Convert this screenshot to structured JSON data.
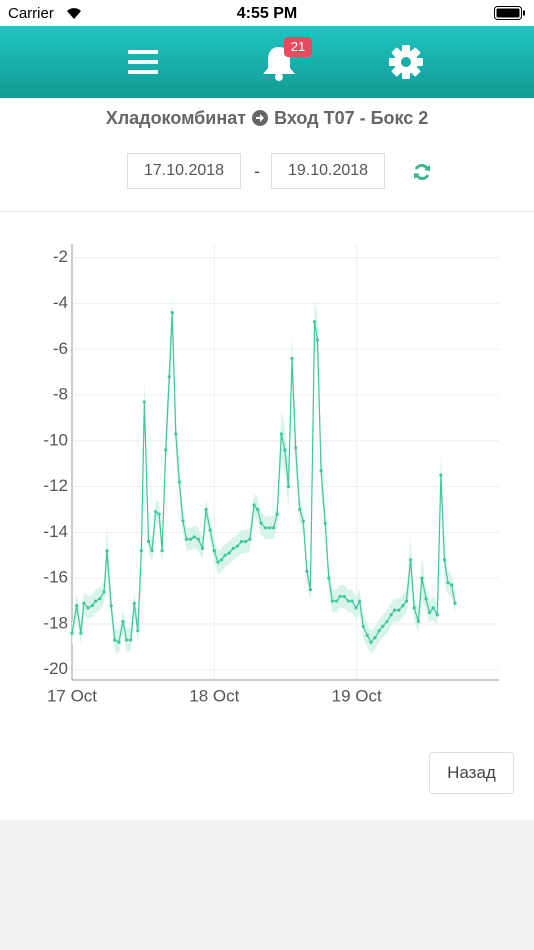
{
  "status_bar": {
    "carrier": "Carrier",
    "time": "4:55 PM"
  },
  "header": {
    "badge": "21"
  },
  "breadcrumb": {
    "from": "Хладокомбинат",
    "to": "Вход Т07 - Бокс 2"
  },
  "date_range": {
    "start": "17.10.2018",
    "separator": "-",
    "end": "19.10.2018"
  },
  "button": {
    "label": "Назад"
  },
  "chart_data": {
    "type": "line",
    "x": [
      0,
      0.8,
      1.5,
      2,
      2.7,
      3.4,
      4,
      4.7,
      5.4,
      5.9,
      6.6,
      7.2,
      7.9,
      8.6,
      9.2,
      9.9,
      10.5,
      11.1,
      11.7,
      12.2,
      12.9,
      13.5,
      14.1,
      14.7,
      15.2,
      15.8,
      16.4,
      16.9,
      17.5,
      18.1,
      18.7,
      19.3,
      20,
      20.6,
      21.3,
      22,
      22.6,
      23.3,
      24,
      24.6,
      25.2,
      25.8,
      26.5,
      27.2,
      27.9,
      28.6,
      29.3,
      30,
      30.7,
      31.3,
      31.9,
      32.6,
      33.3,
      34,
      34.6,
      35.3,
      35.9,
      36.5,
      37.1,
      37.7,
      38.4,
      39,
      39.6,
      40.2,
      40.9,
      41.4,
      42,
      42.7,
      43.3,
      43.9,
      44.6,
      45.2,
      45.9,
      46.6,
      47.2,
      47.9,
      48.5,
      49.1,
      49.8,
      50.4,
      51.1,
      51.8,
      52.4,
      53.1,
      53.8,
      54.4,
      55.1,
      55.8,
      56.4,
      57.1,
      57.7,
      58.4,
      59,
      59.7,
      60.3,
      60.9,
      61.6,
      62.2,
      62.8,
      63.4,
      64,
      64.6
    ],
    "series": [
      {
        "color": "#3fc59f",
        "values": [
          -18.4,
          -17.2,
          -18.4,
          -17.1,
          -17.3,
          -17.2,
          -17.0,
          -16.9,
          -16.6,
          -14.8,
          -17.2,
          -18.7,
          -18.8,
          -17.9,
          -18.7,
          -18.7,
          -17.1,
          -18.3,
          -14.8,
          -8.3,
          -14.4,
          -14.8,
          -13.1,
          -13.2,
          -14.8,
          -10.4,
          -7.2,
          -4.4,
          -9.7,
          -11.8,
          -13.5,
          -14.3,
          -14.3,
          -14.2,
          -14.3,
          -14.7,
          -13.0,
          -13.9,
          -14.8,
          -15.3,
          -15.2,
          -15.0,
          -14.9,
          -14.7,
          -14.6,
          -14.4,
          -14.4,
          -14.3,
          -12.8,
          -13.0,
          -13.6,
          -13.8,
          -13.8,
          -13.8,
          -13.2,
          -9.7,
          -10.4,
          -12.0,
          -6.4,
          -10.3,
          -13.0,
          -13.5,
          -15.7,
          -16.5,
          -4.8,
          -5.6,
          -11.3,
          -13.6,
          -16.0,
          -17.0,
          -17.0,
          -16.8,
          -16.8,
          -17.0,
          -17.0,
          -17.3,
          -17.0,
          -18.1,
          -18.5,
          -18.8,
          -18.6,
          -18.3,
          -18.1,
          -17.9,
          -17.6,
          -17.4,
          -17.4,
          -17.2,
          -17.0,
          -15.2,
          -17.3,
          -17.9,
          -16.0,
          -16.9,
          -17.5,
          -17.3,
          -17.6,
          -11.5,
          -15.2,
          -16.2,
          -16.3,
          -17.1
        ]
      }
    ],
    "band": {
      "color": "#d8f4ea",
      "upper": [
        -17.9,
        -16.7,
        -17.9,
        -16.6,
        -16.8,
        -16.7,
        -16.5,
        -16.4,
        -16.1,
        -13.8,
        -16.7,
        -18.2,
        -18.3,
        -17.4,
        -18.2,
        -18.2,
        -16.6,
        -17.8,
        -13.8,
        -7.3,
        -13.9,
        -14.3,
        -12.6,
        -12.7,
        -14.3,
        -9.4,
        -6.2,
        -3.4,
        -8.7,
        -11.3,
        -13.0,
        -13.8,
        -13.8,
        -13.7,
        -13.8,
        -14.2,
        -12.5,
        -13.4,
        -14.3,
        -14.8,
        -14.7,
        -14.5,
        -14.4,
        -14.2,
        -14.1,
        -13.9,
        -13.9,
        -13.8,
        -12.3,
        -12.5,
        -13.1,
        -13.3,
        -13.3,
        -13.3,
        -12.7,
        -8.7,
        -9.4,
        -11.0,
        -5.4,
        -9.3,
        -12.5,
        -13.0,
        -15.2,
        -16.0,
        -3.8,
        -4.6,
        -10.3,
        -13.1,
        -15.5,
        -16.5,
        -16.5,
        -16.3,
        -16.3,
        -16.5,
        -16.5,
        -16.8,
        -16.5,
        -17.6,
        -18.0,
        -18.3,
        -18.1,
        -17.8,
        -17.6,
        -17.4,
        -17.1,
        -16.9,
        -16.9,
        -16.7,
        -16.5,
        -14.2,
        -16.8,
        -17.4,
        -15.0,
        -16.4,
        -17.0,
        -16.8,
        -17.1,
        -10.5,
        -14.2,
        -15.7,
        -15.8,
        -16.6
      ],
      "lower": [
        -18.9,
        -17.7,
        -18.9,
        -17.6,
        -17.8,
        -17.7,
        -17.5,
        -17.4,
        -17.1,
        -15.8,
        -17.7,
        -19.2,
        -19.3,
        -18.4,
        -19.2,
        -19.2,
        -17.6,
        -18.8,
        -15.8,
        -9.3,
        -14.9,
        -15.3,
        -13.6,
        -13.7,
        -15.3,
        -11.4,
        -8.2,
        -5.4,
        -10.7,
        -12.3,
        -14.0,
        -14.8,
        -14.8,
        -14.7,
        -14.8,
        -15.2,
        -13.5,
        -14.4,
        -15.3,
        -15.8,
        -15.7,
        -15.5,
        -15.4,
        -15.2,
        -15.1,
        -14.9,
        -14.9,
        -14.8,
        -13.3,
        -13.5,
        -14.1,
        -14.3,
        -14.3,
        -14.3,
        -13.7,
        -10.7,
        -11.4,
        -13.0,
        -7.4,
        -11.3,
        -13.5,
        -14.0,
        -16.2,
        -17.0,
        -5.8,
        -6.6,
        -12.3,
        -14.1,
        -16.5,
        -17.5,
        -17.5,
        -17.3,
        -17.3,
        -17.5,
        -17.5,
        -17.8,
        -17.5,
        -18.6,
        -19.0,
        -19.3,
        -19.1,
        -18.8,
        -18.6,
        -18.4,
        -18.1,
        -17.9,
        -17.9,
        -17.7,
        -17.5,
        -16.2,
        -17.8,
        -18.4,
        -17.0,
        -17.4,
        -18.0,
        -17.8,
        -18.1,
        -12.5,
        -16.2,
        -16.7,
        -16.8,
        -17.6
      ]
    },
    "xlim": [
      0,
      72
    ],
    "xticks": [
      {
        "value": 0,
        "label": "17 Oct"
      },
      {
        "value": 24,
        "label": "18 Oct"
      },
      {
        "value": 48,
        "label": "19 Oct"
      }
    ],
    "ylim": [
      -20.45,
      -1.4
    ],
    "yticks": [
      -20,
      -18,
      -16,
      -14,
      -12,
      -10,
      -8,
      -6,
      -4,
      -2
    ],
    "grid": true
  }
}
